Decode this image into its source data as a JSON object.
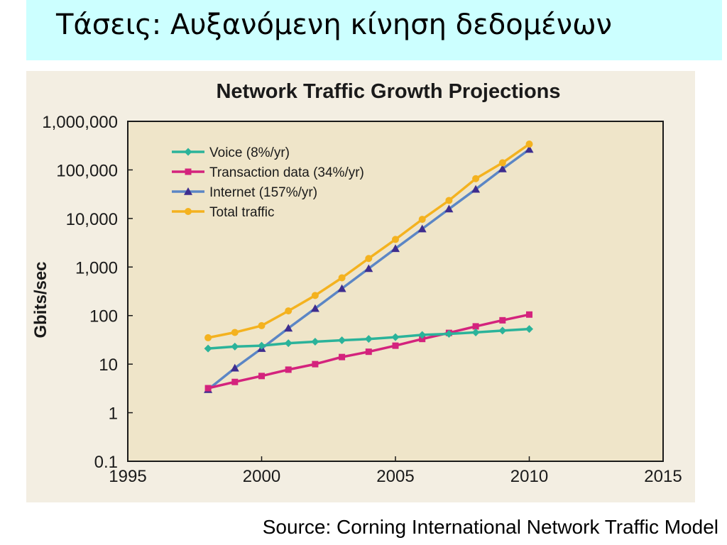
{
  "slide": {
    "title": "Τάσεις: Αυξανόμενη κίνηση δεδομένων",
    "source": "Source: Corning International Network Traffic Model"
  },
  "chart_data": {
    "type": "line",
    "title": "Network Traffic Growth Projections",
    "xlabel": "",
    "ylabel": "Gbits/sec",
    "xlim": [
      1995,
      2015
    ],
    "ylim": [
      0.1,
      1000000
    ],
    "yscale": "log",
    "grid": false,
    "legend_position": "top-left",
    "x_ticks": [
      1995,
      2000,
      2005,
      2010,
      2015
    ],
    "x_tick_labels": [
      "1995",
      "2000",
      "2005",
      "2010",
      "2015"
    ],
    "y_ticks": [
      0.1,
      1,
      10,
      100,
      1000,
      10000,
      100000,
      1000000
    ],
    "y_tick_labels": [
      "0.1",
      "1",
      "10",
      "100",
      "1,000",
      "10,000",
      "100,000",
      "1,000,000"
    ],
    "x": [
      1998,
      1999,
      2000,
      2001,
      2002,
      2003,
      2004,
      2005,
      2006,
      2007,
      2008,
      2009,
      2010
    ],
    "series": [
      {
        "name": "Voice (8%/yr)",
        "color": "#2bb39a",
        "marker": "diamond",
        "values": [
          21,
          23,
          24,
          27,
          29,
          31,
          33,
          36,
          40,
          42,
          45,
          49,
          53
        ]
      },
      {
        "name": "Transaction data (34%/yr)",
        "color": "#d4237d",
        "marker": "square",
        "values": [
          3.2,
          4.3,
          5.7,
          7.7,
          10,
          14,
          18,
          24,
          33,
          44,
          60,
          80,
          105
        ]
      },
      {
        "name": "Internet (157%/yr)",
        "color": "#5b86c5",
        "marker": "triangle",
        "values": [
          3,
          8.3,
          21,
          55,
          140,
          360,
          930,
          2400,
          6100,
          15700,
          40000,
          105000,
          265000
        ]
      },
      {
        "name": "Total traffic",
        "color": "#f4b21f",
        "marker": "circle",
        "values": [
          35,
          45,
          62,
          125,
          260,
          600,
          1500,
          3700,
          9600,
          23500,
          66000,
          140000,
          340000
        ]
      }
    ]
  }
}
